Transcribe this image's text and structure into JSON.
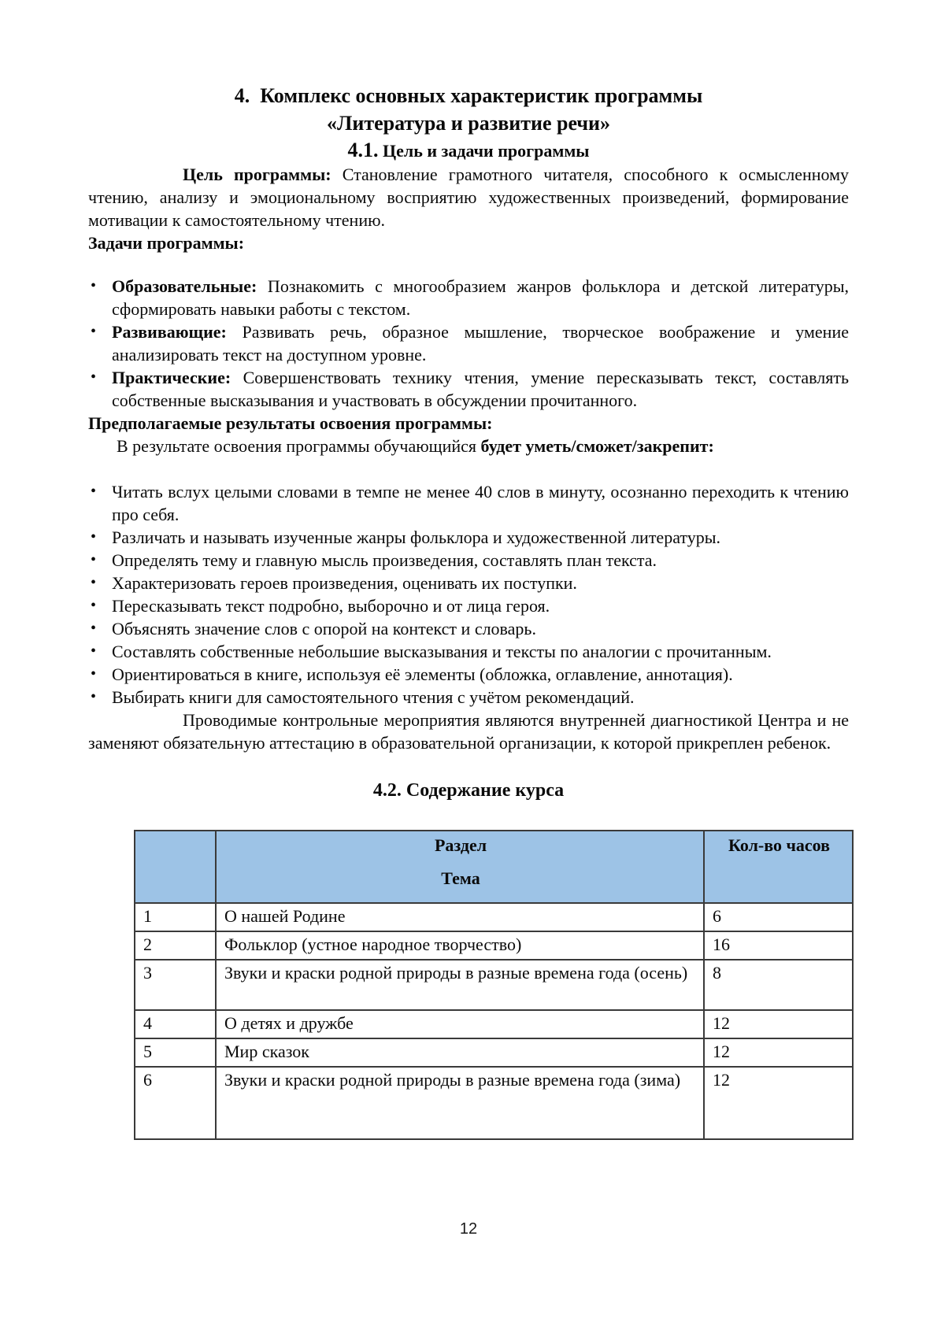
{
  "headings": {
    "title_line1": "4.  Комплекс основных характеристик программы",
    "title_line2": "«Литература и развитие речи»",
    "sec41_num": "4.1.",
    "sec41_title": " Цель и задачи программы",
    "sec42": "4.2. Содержание курса"
  },
  "paragraphs": {
    "goal_lead": "Цель программы:",
    "goal_text": " Становление грамотного читателя, способного к осмысленному чтению, анализу и эмоциональному восприятию художественных произведений, формирование мотивации к самостоятельному чтению.",
    "tasks_heading": "Задачи программы:",
    "results_heading": "Предполагаемые результаты освоения программы:",
    "results_intro_text": "В результате освоения программы обучающийся ",
    "results_intro_bold": "будет уметь/сможет/закрепит:",
    "control_text": "Проводимые контрольные мероприятия являются внутренней диагностикой Центра и не заменяют обязательную аттестацию в образовательной организации, к которой прикреплен ребенок."
  },
  "bullet_char": "•",
  "task_list": [
    {
      "lead": "Образовательные:",
      "text": " Познакомить с многообразием жанров фольклора и детской литературы, сформировать навыки работы с текстом."
    },
    {
      "lead": "Развивающие:",
      "text": " Развивать речь, образное мышление, творческое воображение и умение анализировать текст на доступном уровне."
    },
    {
      "lead": "Практические:",
      "text": " Совершенствовать технику чтения, умение пересказывать текст, составлять собственные высказывания и участвовать в обсуждении прочитанного."
    }
  ],
  "results_list": [
    "Читать вслух целыми словами в темпе не менее 40 слов в минуту, осознанно переходить к чтению про себя.",
    "Различать и называть изученные жанры фольклора и художественной литературы.",
    "Определять тему и главную мысль произведения, составлять план текста.",
    "Характеризовать героев произведения, оценивать их поступки.",
    "Пересказывать текст подробно, выборочно и от лица героя.",
    "Объяснять значение слов с опорой на контекст и словарь.",
    "Составлять собственные небольшие высказывания и тексты по аналогии с прочитанным.",
    "Ориентироваться в книге, используя её элементы (обложка, оглавление, аннотация).",
    "Выбирать книги для самостоятельного чтения с учётом рекомендаций."
  ],
  "table": {
    "header_bg": "#9DC3E6",
    "header": {
      "col1": "",
      "col2_line1": "Раздел",
      "col2_line2": "Тема",
      "col3": "Кол-во часов"
    },
    "rows": [
      {
        "num": "1",
        "topic": "О нашей Родине",
        "hours": "6"
      },
      {
        "num": "2",
        "topic": "Фольклор (устное народное творчество)",
        "hours": "16"
      },
      {
        "num": "3",
        "topic": "Звуки и краски родной природы в разные времена года (осень)",
        "hours": "8"
      },
      {
        "num": "4",
        "topic": "О детях и дружбе",
        "hours": "12"
      },
      {
        "num": "5",
        "topic": "Мир сказок",
        "hours": "12"
      },
      {
        "num": "6",
        "topic": "Звуки и краски родной природы в разные времена года (зима)",
        "hours": "12"
      }
    ]
  },
  "page": {
    "number": "12"
  }
}
